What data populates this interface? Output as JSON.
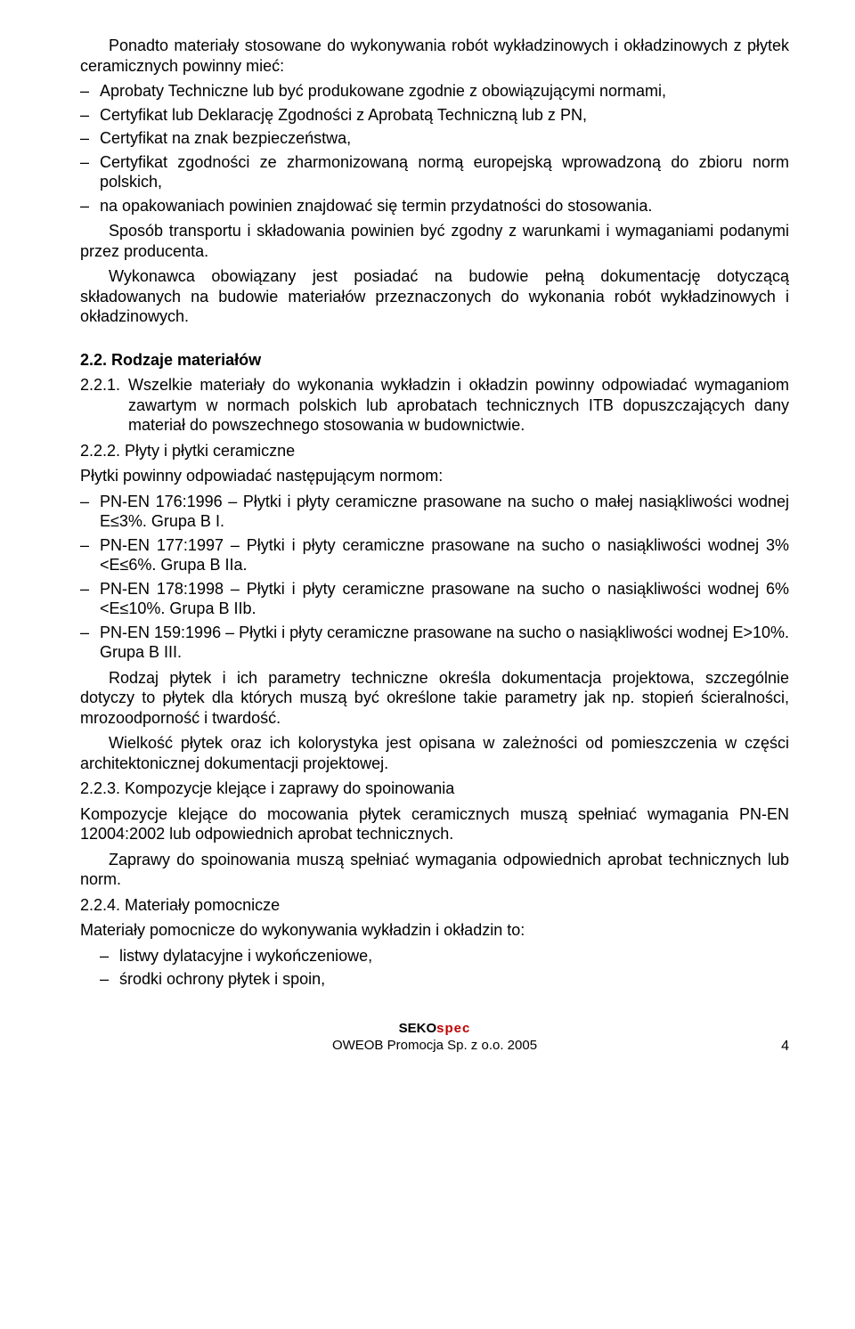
{
  "intro": "Ponadto materiały stosowane do wykonywania robót wykładzinowych i okładzinowych z płytek ceramicznych powinny mieć:",
  "bullets1": [
    "Aprobaty Techniczne lub być produkowane zgodnie z obowiązującymi normami,",
    "Certyfikat lub Deklarację Zgodności z Aprobatą Techniczną lub z PN,",
    "Certyfikat na znak bezpieczeństwa,",
    "Certyfikat zgodności ze zharmonizowaną normą europejską wprowadzoną do zbioru norm polskich,",
    "na opakowaniach powinien znajdować się termin przydatności do stosowania."
  ],
  "p_transport": "Sposób transportu i składowania powinien być zgodny z warunkami i wymaganiami podanymi przez producenta.",
  "p_wykonawca": "Wykonawca obowiązany jest posiadać na budowie pełną dokumentację dotyczącą składowanych na budowie materiałów przeznaczonych do wykonania robót wykładzinowych i okładzinowych.",
  "h_22": "2.2. Rodzaje materiałów",
  "n221_num": "2.2.1.",
  "n221_txt": "Wszelkie materiały do wykonania wykładzin i okładzin powinny odpowiadać wymaganiom zawartym w normach polskich lub aprobatach technicznych ITB dopuszczających dany materiał do powszechnego stosowania w budownictwie.",
  "n222": "2.2.2.  Płyty i płytki ceramiczne",
  "p_plytki_norm": "Płytki powinny odpowiadać następującym normom:",
  "bullets2": [
    "PN-EN 176:1996 – Płytki i płyty ceramiczne prasowane na sucho o małej nasiąkliwości wodnej E≤3%. Grupa B I.",
    "PN-EN 177:1997 – Płytki i płyty ceramiczne prasowane na sucho o nasiąkliwości wodnej 3%<E≤6%. Grupa B IIa.",
    "PN-EN 178:1998 – Płytki i płyty ceramiczne prasowane na sucho o nasiąkliwości wodnej 6%<E≤10%. Grupa B IIb.",
    "PN-EN 159:1996 – Płytki i płyty ceramiczne prasowane na sucho o nasiąkliwości wodnej E>10%. Grupa B III."
  ],
  "p_rodzaj": "Rodzaj płytek i ich parametry techniczne określa dokumentacja projektowa, szczególnie dotyczy to płytek dla których muszą być określone takie parametry jak np. stopień ścieralności, mrozoodporność i twardość.",
  "p_wielkosc": "Wielkość płytek oraz ich kolorystyka jest opisana w zależności od pomieszczenia w części architektonicznej dokumentacji projektowej.",
  "n223": "2.2.3.  Kompozycje klejące i zaprawy do spoinowania",
  "p_kompozycje": "Kompozycje klejące do mocowania płytek ceramicznych muszą spełniać wymagania PN-EN 12004:2002 lub odpowiednich aprobat technicznych.",
  "p_zaprawy": "Zaprawy do spoinowania muszą spełniać wymagania odpowiednich aprobat technicznych lub norm.",
  "n224": "2.2.4.  Materiały pomocnicze",
  "p_matpom": "Materiały pomocnicze do wykonywania wykładzin i okładzin to:",
  "bullets3": [
    "listwy dylatacyjne i wykończeniowe,",
    "środki ochrony płytek i spoin,"
  ],
  "footer_brand_seko": "SEKO",
  "footer_brand_spec": "spec",
  "footer_company": "OWEOB Promocja Sp. z o.o. 2005",
  "footer_page": "4"
}
